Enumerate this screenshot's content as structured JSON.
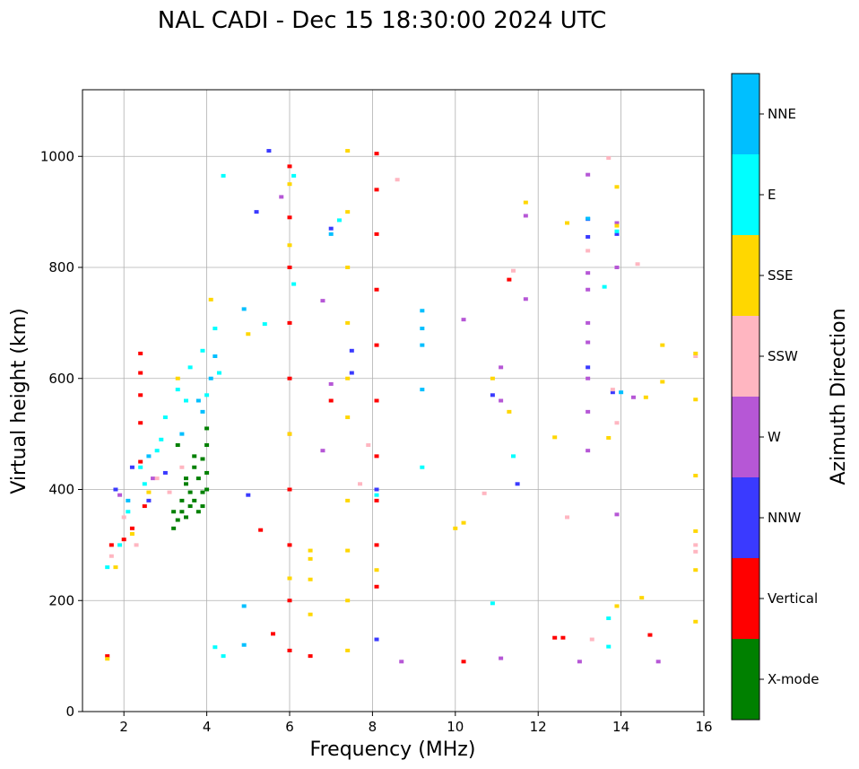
{
  "chart_data": {
    "type": "scatter",
    "title": "NAL CADI - Dec 15 18:30:00 2024 UTC",
    "xlabel": "Frequency (MHz)",
    "ylabel": "Virtual height (km)",
    "xlim": [
      1,
      16
    ],
    "ylim": [
      0,
      1120
    ],
    "x_ticks": [
      2,
      4,
      6,
      8,
      10,
      12,
      14,
      16
    ],
    "y_ticks": [
      0,
      200,
      400,
      600,
      800,
      1000
    ],
    "grid": true,
    "colorbar": {
      "label": "Azimuth Direction",
      "categories": [
        "X-mode",
        "Vertical",
        "NNW",
        "W",
        "SSW",
        "SSE",
        "E",
        "NNE"
      ],
      "colors": [
        "#008000",
        "#ff0000",
        "#3a3aff",
        "#b657d6",
        "#ffb6c1",
        "#ffd700",
        "#00ffff",
        "#00bfff"
      ]
    },
    "series": [
      {
        "name": "X-mode",
        "points": [
          [
            3.2,
            330
          ],
          [
            3.3,
            345
          ],
          [
            3.4,
            360
          ],
          [
            3.5,
            350
          ],
          [
            3.6,
            370
          ],
          [
            3.7,
            380
          ],
          [
            3.8,
            360
          ],
          [
            3.9,
            395
          ],
          [
            4.0,
            400
          ],
          [
            3.5,
            420
          ],
          [
            3.7,
            440
          ],
          [
            3.9,
            455
          ],
          [
            4.0,
            480
          ],
          [
            4.0,
            510
          ],
          [
            3.3,
            480
          ],
          [
            3.5,
            410
          ],
          [
            3.8,
            420
          ],
          [
            3.6,
            395
          ],
          [
            3.4,
            380
          ],
          [
            3.9,
            370
          ],
          [
            4.0,
            430
          ],
          [
            3.7,
            460
          ],
          [
            3.2,
            360
          ]
        ]
      },
      {
        "name": "Vertical",
        "points": [
          [
            1.6,
            100
          ],
          [
            1.7,
            300
          ],
          [
            2.0,
            310
          ],
          [
            2.2,
            330
          ],
          [
            2.5,
            370
          ],
          [
            2.4,
            450
          ],
          [
            2.4,
            520
          ],
          [
            2.4,
            570
          ],
          [
            2.4,
            610
          ],
          [
            2.4,
            645
          ],
          [
            6.0,
            982
          ],
          [
            6.0,
            890
          ],
          [
            6.0,
            800
          ],
          [
            6.0,
            700
          ],
          [
            6.0,
            600
          ],
          [
            6.0,
            500
          ],
          [
            6.0,
            400
          ],
          [
            6.0,
            300
          ],
          [
            6.0,
            200
          ],
          [
            6.0,
            110
          ],
          [
            8.1,
            1005
          ],
          [
            8.1,
            940
          ],
          [
            8.1,
            860
          ],
          [
            8.1,
            760
          ],
          [
            8.1,
            660
          ],
          [
            8.1,
            560
          ],
          [
            8.1,
            460
          ],
          [
            8.1,
            380
          ],
          [
            8.1,
            300
          ],
          [
            8.1,
            225
          ],
          [
            11.3,
            778
          ],
          [
            12.4,
            133
          ],
          [
            12.6,
            133
          ],
          [
            14.7,
            138
          ],
          [
            5.6,
            140
          ],
          [
            5.3,
            327
          ],
          [
            7.0,
            560
          ],
          [
            10.2,
            90
          ],
          [
            6.5,
            100
          ]
        ]
      },
      {
        "name": "NNW",
        "points": [
          [
            1.8,
            400
          ],
          [
            2.2,
            440
          ],
          [
            2.6,
            380
          ],
          [
            3.0,
            430
          ],
          [
            5.5,
            1010
          ],
          [
            5.0,
            390
          ],
          [
            5.2,
            900
          ],
          [
            7.0,
            870
          ],
          [
            7.5,
            650
          ],
          [
            7.5,
            610
          ],
          [
            8.1,
            400
          ],
          [
            8.1,
            130
          ],
          [
            10.9,
            570
          ],
          [
            11.5,
            410
          ],
          [
            13.2,
            887
          ],
          [
            13.2,
            855
          ],
          [
            13.2,
            620
          ],
          [
            13.8,
            575
          ],
          [
            13.9,
            860
          ]
        ]
      },
      {
        "name": "W",
        "points": [
          [
            1.9,
            390
          ],
          [
            2.7,
            420
          ],
          [
            5.8,
            927
          ],
          [
            6.8,
            740
          ],
          [
            6.8,
            470
          ],
          [
            7.0,
            590
          ],
          [
            8.7,
            90
          ],
          [
            10.2,
            706
          ],
          [
            11.1,
            620
          ],
          [
            11.1,
            560
          ],
          [
            11.1,
            96
          ],
          [
            11.7,
            893
          ],
          [
            11.7,
            743
          ],
          [
            13.2,
            967
          ],
          [
            13.2,
            790
          ],
          [
            13.2,
            760
          ],
          [
            13.2,
            700
          ],
          [
            13.2,
            665
          ],
          [
            13.2,
            600
          ],
          [
            13.2,
            540
          ],
          [
            13.2,
            470
          ],
          [
            13.9,
            880
          ],
          [
            13.9,
            800
          ],
          [
            13.9,
            355
          ],
          [
            13.0,
            90
          ],
          [
            14.3,
            566
          ],
          [
            14.9,
            90
          ]
        ]
      },
      {
        "name": "SSW",
        "points": [
          [
            1.7,
            280
          ],
          [
            2.0,
            350
          ],
          [
            2.3,
            300
          ],
          [
            2.8,
            420
          ],
          [
            3.1,
            395
          ],
          [
            3.4,
            440
          ],
          [
            7.7,
            410
          ],
          [
            7.9,
            480
          ],
          [
            8.6,
            958
          ],
          [
            10.7,
            393
          ],
          [
            11.4,
            794
          ],
          [
            12.7,
            350
          ],
          [
            13.2,
            830
          ],
          [
            13.3,
            130
          ],
          [
            13.7,
            997
          ],
          [
            13.8,
            580
          ],
          [
            13.9,
            520
          ],
          [
            14.4,
            806
          ],
          [
            15.8,
            640
          ],
          [
            15.8,
            300
          ],
          [
            15.8,
            288
          ]
        ]
      },
      {
        "name": "SSE",
        "points": [
          [
            1.6,
            95
          ],
          [
            1.8,
            260
          ],
          [
            2.2,
            320
          ],
          [
            2.6,
            395
          ],
          [
            3.3,
            600
          ],
          [
            4.1,
            742
          ],
          [
            5.0,
            680
          ],
          [
            6.0,
            950
          ],
          [
            6.0,
            840
          ],
          [
            6.0,
            240
          ],
          [
            6.0,
            500
          ],
          [
            6.5,
            290
          ],
          [
            6.5,
            275
          ],
          [
            6.5,
            238
          ],
          [
            6.5,
            175
          ],
          [
            7.4,
            1010
          ],
          [
            7.4,
            900
          ],
          [
            7.4,
            800
          ],
          [
            7.4,
            700
          ],
          [
            7.4,
            600
          ],
          [
            7.4,
            530
          ],
          [
            7.4,
            380
          ],
          [
            7.4,
            290
          ],
          [
            7.4,
            200
          ],
          [
            7.4,
            110
          ],
          [
            8.1,
            255
          ],
          [
            10.2,
            340
          ],
          [
            10.0,
            330
          ],
          [
            10.9,
            600
          ],
          [
            11.3,
            540
          ],
          [
            11.7,
            917
          ],
          [
            12.4,
            494
          ],
          [
            12.7,
            880
          ],
          [
            13.7,
            493
          ],
          [
            13.9,
            945
          ],
          [
            13.9,
            875
          ],
          [
            13.9,
            190
          ],
          [
            14.5,
            205
          ],
          [
            14.6,
            566
          ],
          [
            15.0,
            660
          ],
          [
            15.0,
            594
          ],
          [
            15.8,
            645
          ],
          [
            15.8,
            562
          ],
          [
            15.8,
            425
          ],
          [
            15.8,
            325
          ],
          [
            15.8,
            255
          ],
          [
            15.8,
            162
          ]
        ]
      },
      {
        "name": "E",
        "points": [
          [
            1.6,
            260
          ],
          [
            1.9,
            300
          ],
          [
            2.1,
            360
          ],
          [
            2.5,
            410
          ],
          [
            2.8,
            470
          ],
          [
            3.0,
            530
          ],
          [
            3.3,
            580
          ],
          [
            3.6,
            620
          ],
          [
            3.9,
            650
          ],
          [
            4.2,
            690
          ],
          [
            4.3,
            610
          ],
          [
            4.0,
            570
          ],
          [
            3.5,
            560
          ],
          [
            2.9,
            490
          ],
          [
            2.4,
            440
          ],
          [
            4.4,
            965
          ],
          [
            4.2,
            116
          ],
          [
            4.4,
            100
          ],
          [
            5.4,
            698
          ],
          [
            6.1,
            965
          ],
          [
            6.1,
            770
          ],
          [
            7.2,
            885
          ],
          [
            8.1,
            390
          ],
          [
            9.2,
            440
          ],
          [
            10.9,
            195
          ],
          [
            11.4,
            460
          ],
          [
            13.6,
            765
          ],
          [
            13.9,
            865
          ],
          [
            13.7,
            168
          ],
          [
            13.7,
            117
          ]
        ]
      },
      {
        "name": "NNE",
        "points": [
          [
            2.1,
            380
          ],
          [
            2.6,
            460
          ],
          [
            3.4,
            500
          ],
          [
            3.8,
            560
          ],
          [
            4.1,
            600
          ],
          [
            4.2,
            640
          ],
          [
            3.9,
            540
          ],
          [
            4.9,
            725
          ],
          [
            4.9,
            190
          ],
          [
            4.9,
            120
          ],
          [
            9.2,
            722
          ],
          [
            9.2,
            690
          ],
          [
            9.2,
            660
          ],
          [
            9.2,
            580
          ],
          [
            7.0,
            860
          ],
          [
            13.2,
            888
          ],
          [
            14.0,
            575
          ]
        ]
      }
    ]
  }
}
